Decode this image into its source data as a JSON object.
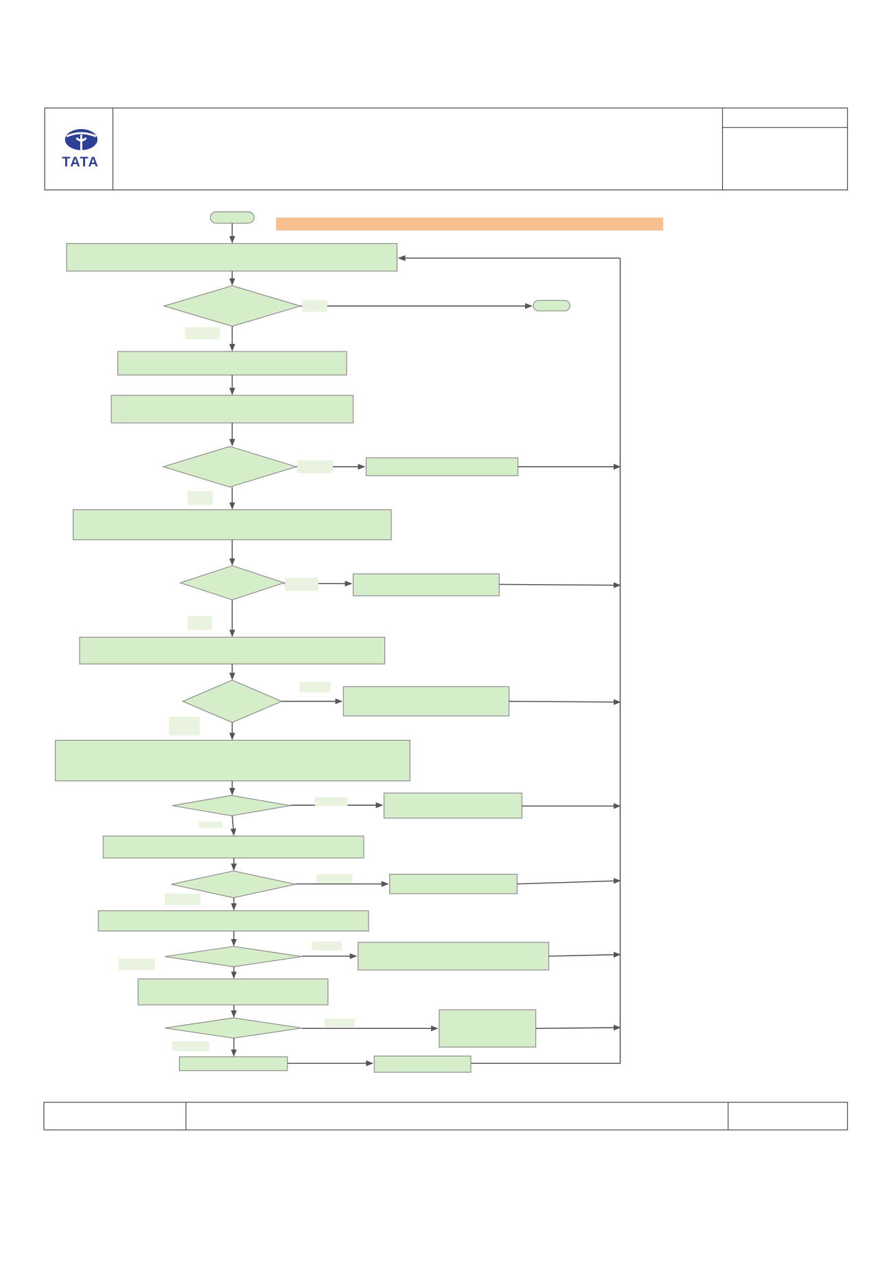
{
  "header": {
    "logo_text": "TATA"
  }
}
